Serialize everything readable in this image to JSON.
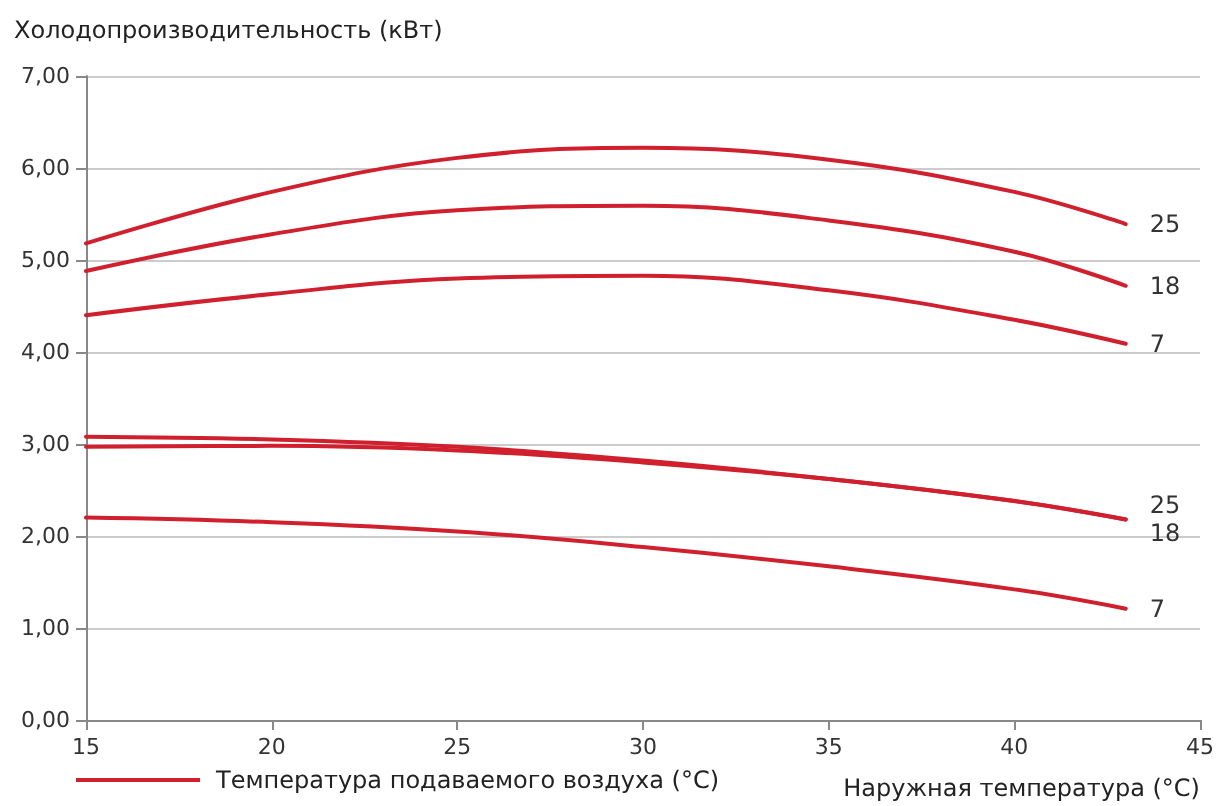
{
  "chart_data": {
    "type": "line",
    "ylabel": "Холодопроизводительность (кВт)",
    "xlabel": "Наружная температура (°C)",
    "legend_title": "Температура подаваемого воздуха (°C)",
    "grid": "y",
    "marker": "none",
    "line_style": "solid",
    "x": [
      15,
      20,
      25,
      30,
      35,
      40,
      43
    ],
    "xlim": [
      15,
      45
    ],
    "xticks": [
      15,
      20,
      25,
      30,
      35,
      40,
      45
    ],
    "ylim": [
      0,
      7
    ],
    "yticks": [
      {
        "value": 0,
        "label": "0,00"
      },
      {
        "value": 1,
        "label": "1,00"
      },
      {
        "value": 2,
        "label": "2,00"
      },
      {
        "value": 3,
        "label": "3,00"
      },
      {
        "value": 4,
        "label": "4,00"
      },
      {
        "value": 5,
        "label": "5,00"
      },
      {
        "value": 6,
        "label": "6,00"
      },
      {
        "value": 7,
        "label": "7,00"
      }
    ],
    "series": [
      {
        "name": "25",
        "color": "#d0202e",
        "values": [
          5.18,
          5.74,
          6.11,
          6.22,
          6.09,
          5.74,
          5.39
        ]
      },
      {
        "name": "18",
        "color": "#d0202e",
        "values": [
          4.88,
          5.28,
          5.54,
          5.59,
          5.43,
          5.09,
          4.72
        ]
      },
      {
        "name": "7",
        "color": "#d0202e",
        "values": [
          4.4,
          4.63,
          4.8,
          4.83,
          4.67,
          4.35,
          4.09
        ]
      },
      {
        "name": "25",
        "color": "#d0202e",
        "values": [
          3.08,
          3.05,
          2.97,
          2.82,
          2.62,
          2.38,
          2.18
        ]
      },
      {
        "name": "18",
        "color": "#d0202e",
        "values": [
          2.97,
          2.98,
          2.93,
          2.8,
          2.62,
          2.38,
          2.18
        ]
      },
      {
        "name": "7",
        "color": "#d0202e",
        "values": [
          2.2,
          2.15,
          2.05,
          1.88,
          1.67,
          1.42,
          1.21
        ]
      }
    ]
  }
}
